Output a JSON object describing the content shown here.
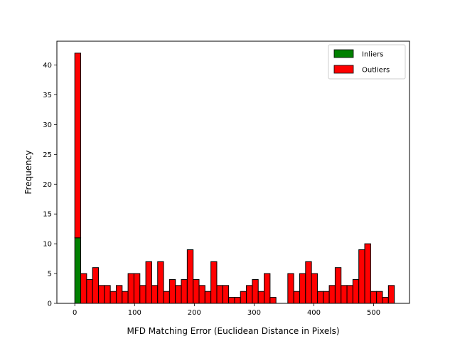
{
  "chart_data": {
    "type": "bar",
    "subtype": "stacked-histogram",
    "title": "",
    "xlabel": "MFD Matching Error (Euclidean Distance in Pixels)",
    "ylabel": "Frequency",
    "xlim": [
      -30,
      560
    ],
    "ylim": [
      0,
      44
    ],
    "xticks": [
      0,
      100,
      200,
      300,
      400,
      500
    ],
    "yticks": [
      0,
      5,
      10,
      15,
      20,
      25,
      30,
      35,
      40
    ],
    "grid": false,
    "legend_position": "top-right",
    "bin_start": 0,
    "bin_width": 9.9,
    "series": [
      {
        "name": "Inliers",
        "color": "#008000",
        "values": [
          11
        ]
      },
      {
        "name": "Outliers",
        "color": "#ff0000",
        "values": [
          31,
          5,
          4,
          6,
          3,
          3,
          2,
          3,
          2,
          5,
          5,
          3,
          7,
          3,
          7,
          2,
          4,
          3,
          4,
          9,
          4,
          3,
          2,
          7,
          3,
          3,
          1,
          1,
          2,
          3,
          4,
          2,
          5,
          1,
          0,
          0,
          5,
          2,
          5,
          7,
          5,
          2,
          2,
          3,
          6,
          3,
          3,
          4,
          9,
          10,
          2,
          2,
          1,
          3
        ]
      }
    ]
  }
}
